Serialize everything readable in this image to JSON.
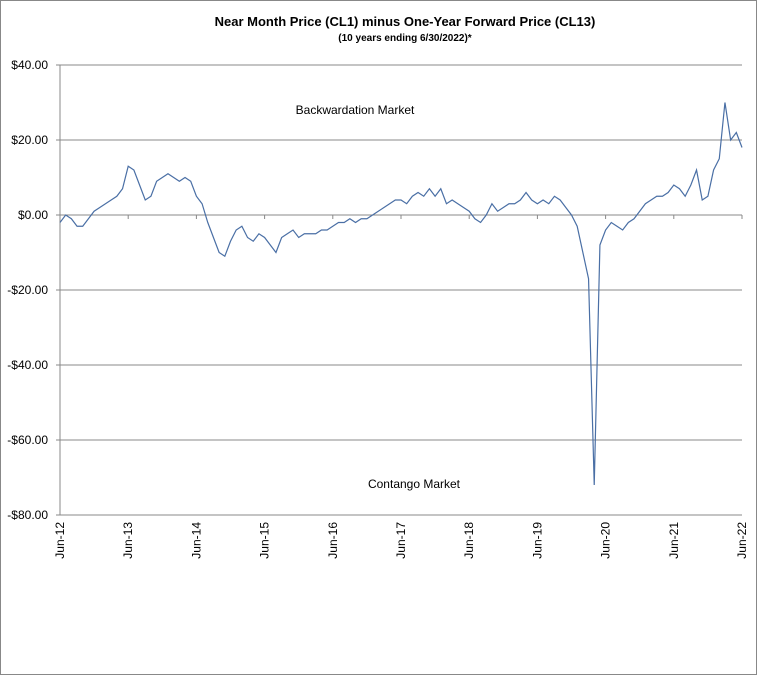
{
  "chart_data": {
    "type": "line",
    "title": "Near Month Price (CL1) minus One-Year Forward Price (CL13)",
    "subtitle": "(10 years ending  6/30/2022)*",
    "annotations": [
      "Backwardation Market",
      "Contango Market"
    ],
    "categories": [
      "Jun-12",
      null,
      null,
      null,
      null,
      null,
      null,
      null,
      null,
      null,
      null,
      null,
      "Jun-13",
      null,
      null,
      null,
      null,
      null,
      null,
      null,
      null,
      null,
      null,
      null,
      "Jun-14",
      null,
      null,
      null,
      null,
      null,
      null,
      null,
      null,
      null,
      null,
      null,
      "Jun-15",
      null,
      null,
      null,
      null,
      null,
      null,
      null,
      null,
      null,
      null,
      null,
      "Jun-16",
      null,
      null,
      null,
      null,
      null,
      null,
      null,
      null,
      null,
      null,
      null,
      "Jun-17",
      null,
      null,
      null,
      null,
      null,
      null,
      null,
      null,
      null,
      null,
      null,
      "Jun-18",
      null,
      null,
      null,
      null,
      null,
      null,
      null,
      null,
      null,
      null,
      null,
      "Jun-19",
      null,
      null,
      null,
      null,
      null,
      null,
      null,
      null,
      null,
      null,
      null,
      "Jun-20",
      null,
      null,
      null,
      null,
      null,
      null,
      null,
      null,
      null,
      null,
      null,
      "Jun-21",
      null,
      null,
      null,
      null,
      null,
      null,
      null,
      null,
      null,
      null,
      null,
      "Jun-22"
    ],
    "series": [
      {
        "name": "CL1-CL13",
        "color": "#4a6fa5",
        "values": [
          -2,
          0,
          -1,
          -3,
          -3,
          -1,
          1,
          2,
          3,
          4,
          5,
          7,
          13,
          12,
          8,
          4,
          5,
          9,
          10,
          11,
          10,
          9,
          10,
          9,
          5,
          3,
          -2,
          -6,
          -10,
          -11,
          -7,
          -4,
          -3,
          -6,
          -7,
          -5,
          -6,
          -8,
          -10,
          -6,
          -5,
          -4,
          -6,
          -5,
          -5,
          -5,
          -4,
          -4,
          -3,
          -2,
          -2,
          -1,
          -2,
          -1,
          -1,
          0,
          1,
          2,
          3,
          4,
          4,
          3,
          5,
          6,
          5,
          7,
          5,
          7,
          3,
          4,
          3,
          2,
          1,
          -1,
          -2,
          0,
          3,
          1,
          2,
          3,
          3,
          4,
          6,
          4,
          3,
          4,
          3,
          5,
          4,
          2,
          0,
          -3,
          -10,
          -17,
          -72,
          -8,
          -4,
          -2,
          -3,
          -4,
          -2,
          -1,
          1,
          3,
          4,
          5,
          5,
          6,
          8,
          7,
          5,
          8,
          12,
          4,
          5,
          12,
          15,
          30,
          20,
          22,
          18
        ]
      }
    ],
    "ylim": [
      -80,
      40
    ],
    "yticks": [
      {
        "value": -80,
        "label": "-$80.00"
      },
      {
        "value": -60,
        "label": "-$60.00"
      },
      {
        "value": -40,
        "label": "-$40.00"
      },
      {
        "value": -20,
        "label": "-$20.00"
      },
      {
        "value": 0,
        "label": "$0.00"
      },
      {
        "value": 20,
        "label": "$20.00"
      },
      {
        "value": 40,
        "label": "$40.00"
      }
    ],
    "grid": true
  }
}
